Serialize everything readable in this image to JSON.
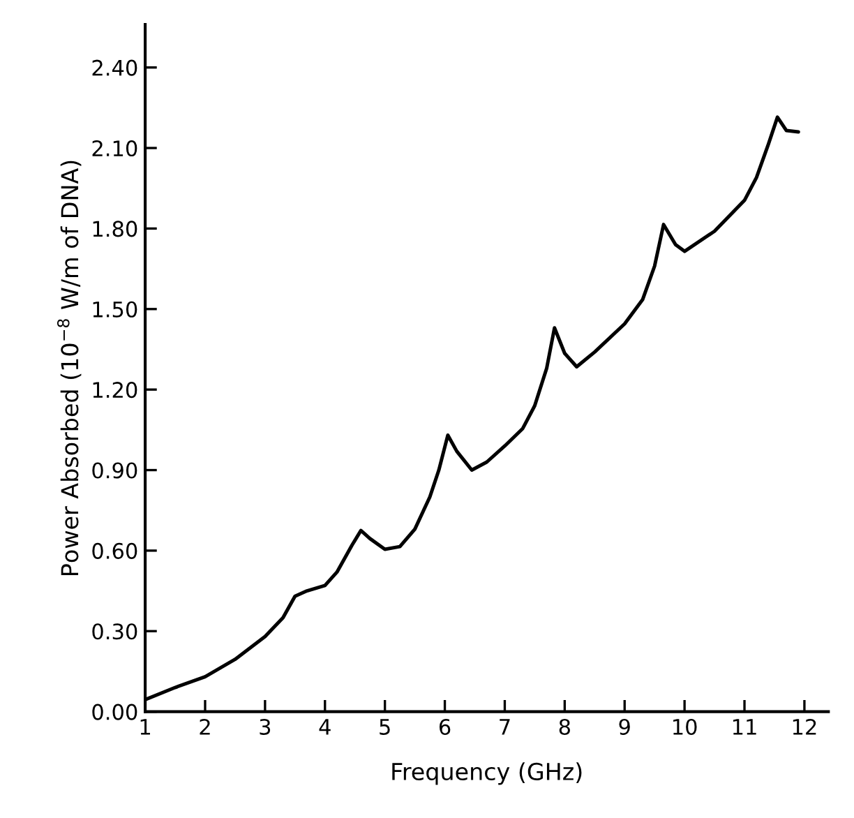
{
  "chart_data": {
    "type": "line",
    "xlabel": "Frequency (GHz)",
    "ylabel": "Power Absorbed (10$^{−8}$ W/m of DNA)",
    "xlim": [
      1,
      12.4
    ],
    "ylim": [
      0,
      2.56
    ],
    "xticks": [
      1,
      2,
      3,
      4,
      5,
      6,
      7,
      8,
      9,
      10,
      11,
      12
    ],
    "yticks": [
      {
        "value": 0,
        "label": "0.00"
      },
      {
        "value": 0.3,
        "label": "0.30"
      },
      {
        "value": 0.6,
        "label": "0.60"
      },
      {
        "value": 0.9,
        "label": "0.90"
      },
      {
        "value": 1.2,
        "label": "1.20"
      },
      {
        "value": 1.5,
        "label": "1.50"
      },
      {
        "value": 1.8,
        "label": "1.80"
      },
      {
        "value": 2.1,
        "label": "2.10"
      },
      {
        "value": 2.4,
        "label": "2.40"
      }
    ],
    "grid": false,
    "marker": "none",
    "line_style": "solid",
    "series": [
      {
        "color": "#000000",
        "x": [
          1,
          1.5,
          2,
          2.5,
          3,
          3.3,
          3.5,
          3.7,
          4,
          4.2,
          4.45,
          4.6,
          4.75,
          5,
          5.25,
          5.5,
          5.75,
          5.9,
          6.05,
          6.2,
          6.45,
          6.7,
          7,
          7.3,
          7.5,
          7.7,
          7.83,
          8,
          8.2,
          8.5,
          9,
          9.3,
          9.5,
          9.65,
          9.85,
          10,
          10.5,
          11,
          11.2,
          11.4,
          11.55,
          11.7,
          11.9
        ],
        "values": [
          0.045,
          0.09,
          0.13,
          0.195,
          0.28,
          0.35,
          0.43,
          0.45,
          0.47,
          0.52,
          0.62,
          0.675,
          0.645,
          0.605,
          0.615,
          0.68,
          0.8,
          0.9,
          1.03,
          0.97,
          0.9,
          0.93,
          0.99,
          1.055,
          1.14,
          1.28,
          1.43,
          1.335,
          1.285,
          1.34,
          1.445,
          1.535,
          1.66,
          1.815,
          1.74,
          1.715,
          1.79,
          1.905,
          1.99,
          2.115,
          2.215,
          2.165,
          2.16
        ]
      }
    ]
  }
}
